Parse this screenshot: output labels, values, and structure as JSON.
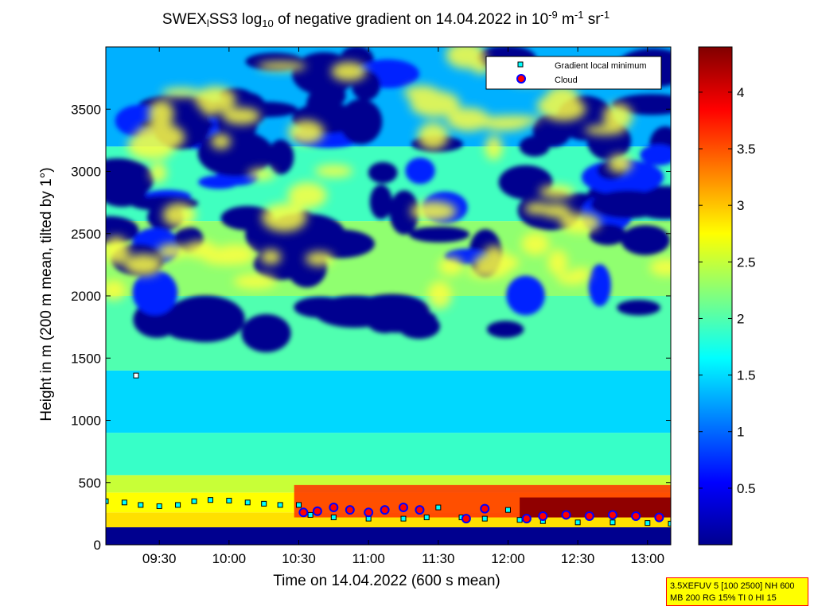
{
  "chart_data": {
    "type": "heatmap",
    "title": "SWEX SS3 log10 of negative gradient on 14.04.2022 in 10-9 m-1 sr-1",
    "title_parts": {
      "pre": "SWEX",
      "sub1": "l",
      "mid": "SS3 log",
      "sub2": "10",
      "post": " of negative gradient on 14.04.2022 in 10",
      "sup1": "-9",
      "post2": " m",
      "sup2": "-1",
      "post3": " sr",
      "sup3": "-1"
    },
    "xlabel": "Time on 14.04.2022 (600 s mean)",
    "ylabel": "Height in m (200 m mean, tilted by 1°)",
    "x_ticks": [
      "09:30",
      "10:00",
      "10:30",
      "11:00",
      "11:30",
      "12:00",
      "12:30",
      "13:00"
    ],
    "y_ticks": [
      "0",
      "500",
      "1000",
      "1500",
      "2000",
      "2500",
      "3000",
      "3500"
    ],
    "ylim": [
      0,
      4000
    ],
    "xlim": [
      "09:07",
      "13:10"
    ],
    "colorbar": {
      "range": [
        0,
        4.4
      ],
      "ticks": [
        "0.5",
        "1",
        "1.5",
        "2",
        "2.5",
        "3",
        "3.5",
        "4"
      ],
      "colormap": "jet"
    },
    "legend": {
      "position": "top-right",
      "entries": [
        {
          "label": "Gradient local minimum",
          "color": "#00ffff",
          "edge": "#000000",
          "marker": "square"
        },
        {
          "label": "Cloud",
          "color": "#ff0000",
          "edge": "#0000ff",
          "marker": "circle"
        }
      ]
    },
    "series": [
      {
        "name": "Gradient local minimum",
        "x": [
          "09:07",
          "09:15",
          "09:22",
          "09:30",
          "09:38",
          "09:45",
          "09:52",
          "10:00",
          "10:08",
          "10:15",
          "10:22",
          "10:30",
          "10:35",
          "10:45",
          "11:00",
          "11:15",
          "11:25",
          "11:30",
          "11:40",
          "11:50",
          "12:00",
          "12:05",
          "12:15",
          "12:30",
          "12:45",
          "13:00",
          "13:10"
        ],
        "y": [
          350,
          340,
          320,
          310,
          320,
          350,
          360,
          355,
          340,
          330,
          320,
          320,
          240,
          220,
          210,
          210,
          220,
          300,
          220,
          210,
          280,
          200,
          190,
          180,
          180,
          175,
          170
        ]
      },
      {
        "name": "Cloud",
        "x": [
          "10:32",
          "10:38",
          "10:45",
          "10:52",
          "11:00",
          "11:07",
          "11:15",
          "11:22",
          "11:42",
          "11:50",
          "12:08",
          "12:15",
          "12:25",
          "12:35",
          "12:45",
          "12:55",
          "13:05"
        ],
        "y": [
          260,
          270,
          300,
          280,
          260,
          280,
          300,
          280,
          210,
          290,
          210,
          230,
          240,
          230,
          240,
          230,
          220
        ]
      }
    ],
    "isolated_point": {
      "x": "09:20",
      "y": 1360
    },
    "colors": {
      "colormap_low": "#00008f",
      "colormap_mid": "#ffff00",
      "colormap_high": "#800000"
    }
  },
  "info_box": {
    "line1": "3.5XEFUV 5 [100 2500] NH 600",
    "line2": "MB 200 RG 15% TI 0 HI 15"
  }
}
